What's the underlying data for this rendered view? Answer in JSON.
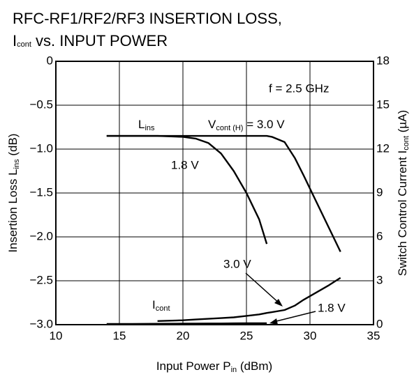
{
  "chart_data": {
    "type": "line",
    "title": [
      "RFC-RF1/RF2/RF3 INSERTION LOSS,",
      "I",
      "cont",
      " vs. INPUT POWER"
    ],
    "x_label": [
      "Input Power  P",
      "in",
      " (dBm)"
    ],
    "y_label": [
      "Insertion Loss  L",
      "ins",
      " (dB)"
    ],
    "y2_label": [
      "Switch Control Current  I",
      "cont",
      " (µA)"
    ],
    "annotations": [
      [
        "f = 2.5 GHz"
      ],
      [
        "L",
        "ins"
      ],
      [
        "V",
        "cont (H)",
        " = 3.0 V"
      ],
      [
        "1.8 V"
      ],
      [
        "3.0 V"
      ],
      [
        "I",
        "cont"
      ],
      [
        "1.8 V"
      ]
    ],
    "x": [
      14,
      16,
      18,
      20,
      21,
      22,
      23,
      24,
      25,
      26,
      26.6,
      27,
      28,
      28.8,
      29.5,
      30.5,
      31.5,
      32.4
    ],
    "series": [
      {
        "color": "#000000",
        "values": [
          -0.85,
          -0.85,
          -0.85,
          -0.86,
          -0.88,
          -0.93,
          -1.05,
          -1.25,
          -1.5,
          -1.8,
          -2.08,
          null,
          null,
          null,
          null,
          null,
          null,
          null
        ]
      },
      {
        "color": "#000000",
        "values": [
          -0.85,
          -0.85,
          -0.85,
          -0.85,
          -0.85,
          -0.85,
          -0.85,
          -0.85,
          -0.85,
          -0.85,
          -0.85,
          -0.86,
          -0.92,
          -1.1,
          -1.3,
          -1.6,
          -1.9,
          -2.17
        ]
      },
      {
        "color": "#000000",
        "axis": "y2",
        "values": [
          null,
          null,
          0.25,
          0.3,
          0.35,
          0.4,
          0.45,
          0.5,
          0.6,
          0.7,
          0.8,
          0.85,
          1.0,
          1.3,
          1.7,
          2.2,
          2.7,
          3.2
        ]
      },
      {
        "color": "#000000",
        "axis": "y2",
        "values": [
          0.05,
          0.05,
          0.06,
          0.07,
          0.07,
          0.08,
          0.08,
          0.09,
          0.1,
          0.1,
          0.1,
          null,
          null,
          null,
          null,
          null,
          null,
          null
        ]
      }
    ],
    "xlim": [
      10,
      35
    ],
    "xticks": [
      10,
      15,
      20,
      25,
      30,
      35
    ],
    "ylim": [
      -3.0,
      0
    ],
    "yticks": [
      {
        "value": -3.0,
        "label": "−3.0"
      },
      {
        "value": -2.5,
        "label": "−2.5"
      },
      {
        "value": -2.0,
        "label": "−2.0"
      },
      {
        "value": -1.5,
        "label": "−1.5"
      },
      {
        "value": -1.0,
        "label": "−1.0"
      },
      {
        "value": -0.5,
        "label": "−0.5"
      },
      0
    ],
    "y2lim": [
      0,
      18
    ],
    "y2ticks": [
      0,
      3,
      6,
      9,
      12,
      15,
      18
    ],
    "grid": true
  }
}
